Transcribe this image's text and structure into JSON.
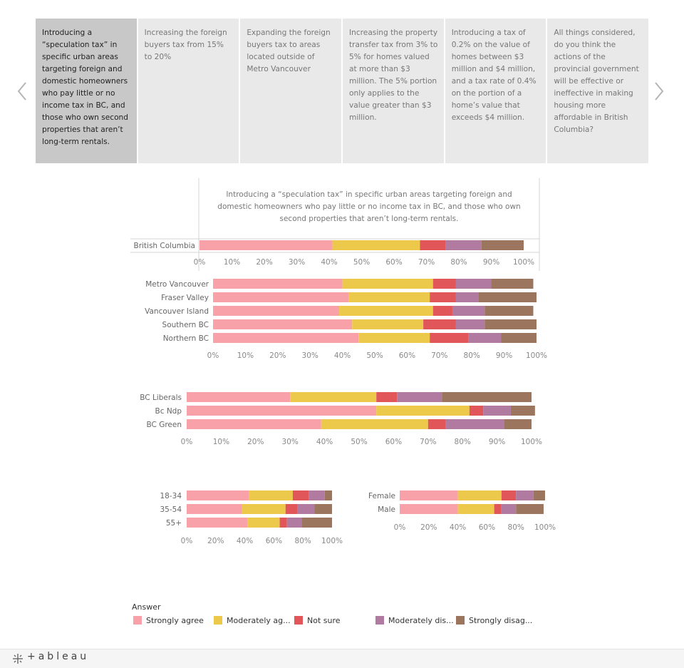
{
  "tabs": [
    {
      "label": "Introducing a “speculation tax” in specific urban areas targeting foreign and domestic homeowners who pay little or no income tax in BC, and those who own second properties that aren’t long-term rentals.",
      "active": true
    },
    {
      "label": "Increasing the foreign buyers tax from 15% to 20%",
      "active": false
    },
    {
      "label": "Expanding the foreign buyers tax to areas located outside of Metro Vancouver",
      "active": false
    },
    {
      "label": "Increasing the property transfer tax from 3% to 5% for homes valued at more than $3 million. The 5% portion only applies to the value greater than $3 million.",
      "active": false
    },
    {
      "label": "Introducing a tax of 0.2% on the value of homes between $3 million and $4 million, and a tax rate of 0.4% on the portion of a home’s value that exceeds $4 million.",
      "active": false
    },
    {
      "label": "All things considered, do you think the actions of the provincial government will be effective or ineffective in making housing more affordable in British Columbia?",
      "active": false
    }
  ],
  "nav": {
    "prev_icon": "chevron-left-icon",
    "next_icon": "chevron-right-icon"
  },
  "colors": {
    "Strongly agree": "#f9a1a8",
    "Moderately agree": "#ecc94b",
    "Not sure": "#e15759",
    "Moderately disagree": "#b07aa1",
    "Strongly disagree": "#9c755f"
  },
  "legend": {
    "title": "Answer",
    "items": [
      {
        "key": "Strongly agree",
        "label": "Strongly agree"
      },
      {
        "key": "Moderately agree",
        "label": "Moderately ag..."
      },
      {
        "key": "Not sure",
        "label": "Not sure"
      },
      {
        "key": "Moderately disagree",
        "label": "Moderately dis..."
      },
      {
        "key": "Strongly disagree",
        "label": "Strongly disag..."
      }
    ]
  },
  "footer": {
    "logo": "+ableau",
    "logo_icon": "tableau-mark-icon"
  },
  "chart_data": [
    {
      "type": "bar",
      "orientation": "horizontal",
      "stacked": true,
      "title": "Introducing a “speculation tax” in specific urban areas targeting foreign and domestic homeowners who pay little or no income tax in BC, and those who own second properties that aren’t long-term rentals.",
      "categories": [
        "British Columbia"
      ],
      "xticks": [
        "0%",
        "10%",
        "20%",
        "30%",
        "40%",
        "50%",
        "60%",
        "70%",
        "80%",
        "90%",
        "100%"
      ],
      "xlim": [
        0,
        100
      ],
      "series": [
        {
          "name": "Strongly agree",
          "values": [
            41
          ]
        },
        {
          "name": "Moderately agree",
          "values": [
            27
          ]
        },
        {
          "name": "Not sure",
          "values": [
            8
          ]
        },
        {
          "name": "Moderately disagree",
          "values": [
            11
          ]
        },
        {
          "name": "Strongly disagree",
          "values": [
            13
          ]
        }
      ]
    },
    {
      "type": "bar",
      "orientation": "horizontal",
      "stacked": true,
      "categories": [
        "Metro Vancouver",
        "Fraser Valley",
        "Vancouver Island",
        "Southern BC",
        "Northern BC"
      ],
      "xticks": [
        "0%",
        "10%",
        "20%",
        "30%",
        "40%",
        "50%",
        "60%",
        "70%",
        "80%",
        "90%",
        "100%"
      ],
      "xlim": [
        0,
        100
      ],
      "series": [
        {
          "name": "Strongly agree",
          "values": [
            40,
            42,
            39,
            43,
            45
          ]
        },
        {
          "name": "Moderately agree",
          "values": [
            28,
            25,
            29,
            22,
            22
          ]
        },
        {
          "name": "Not sure",
          "values": [
            7,
            8,
            6,
            10,
            12
          ]
        },
        {
          "name": "Moderately disagree",
          "values": [
            11,
            7,
            10,
            9,
            10
          ]
        },
        {
          "name": "Strongly disagree",
          "values": [
            13,
            18,
            15,
            16,
            11
          ]
        }
      ]
    },
    {
      "type": "bar",
      "orientation": "horizontal",
      "stacked": true,
      "categories": [
        "BC Liberals",
        "Bc Ndp",
        "BC Green"
      ],
      "xticks": [
        "0%",
        "10%",
        "20%",
        "30%",
        "40%",
        "50%",
        "60%",
        "70%",
        "80%",
        "90%",
        "100%"
      ],
      "xlim": [
        0,
        100
      ],
      "series": [
        {
          "name": "Strongly agree",
          "values": [
            30,
            55,
            39
          ]
        },
        {
          "name": "Moderately agree",
          "values": [
            25,
            27,
            31
          ]
        },
        {
          "name": "Not sure",
          "values": [
            6,
            4,
            5
          ]
        },
        {
          "name": "Moderately disagree",
          "values": [
            13,
            8,
            17
          ]
        },
        {
          "name": "Strongly disagree",
          "values": [
            26,
            7,
            8
          ]
        }
      ]
    },
    {
      "type": "bar",
      "orientation": "horizontal",
      "stacked": true,
      "categories": [
        "18-34",
        "35-54",
        "55+"
      ],
      "xticks": [
        "0%",
        "20%",
        "40%",
        "60%",
        "80%",
        "100%"
      ],
      "xlim": [
        0,
        100
      ],
      "series": [
        {
          "name": "Strongly agree",
          "values": [
            43,
            38,
            42
          ]
        },
        {
          "name": "Moderately agree",
          "values": [
            30,
            30,
            22
          ]
        },
        {
          "name": "Not sure",
          "values": [
            11,
            8,
            5
          ]
        },
        {
          "name": "Moderately disagree",
          "values": [
            11,
            12,
            10
          ]
        },
        {
          "name": "Strongly disagree",
          "values": [
            5,
            12,
            21
          ]
        }
      ]
    },
    {
      "type": "bar",
      "orientation": "horizontal",
      "stacked": true,
      "categories": [
        "Female",
        "Male"
      ],
      "xticks": [
        "0%",
        "20%",
        "40%",
        "60%",
        "80%",
        "100%"
      ],
      "xlim": [
        0,
        100
      ],
      "series": [
        {
          "name": "Strongly agree",
          "values": [
            40,
            40
          ]
        },
        {
          "name": "Moderately agree",
          "values": [
            30,
            25
          ]
        },
        {
          "name": "Not sure",
          "values": [
            10,
            5
          ]
        },
        {
          "name": "Moderately disagree",
          "values": [
            12,
            10
          ]
        },
        {
          "name": "Strongly disagree",
          "values": [
            8,
            19
          ]
        }
      ]
    }
  ]
}
